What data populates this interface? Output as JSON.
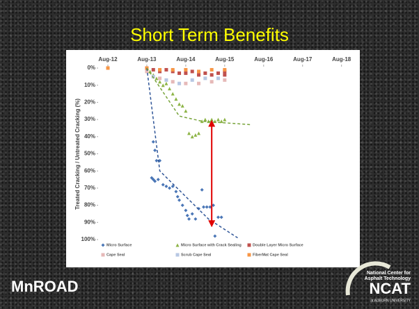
{
  "chart_data": {
    "type": "scatter",
    "title": "Short Term Benefits",
    "y_label": "Treated Cracking / Untreated Cracking (%)",
    "xlim": [
      -3,
      74
    ],
    "xticks": [
      {
        "value": 0,
        "label": "Aug-12"
      },
      {
        "value": 12,
        "label": "Aug-13"
      },
      {
        "value": 24,
        "label": "Aug-14"
      },
      {
        "value": 36,
        "label": "Aug-15"
      },
      {
        "value": 48,
        "label": "Aug-16"
      },
      {
        "value": 60,
        "label": "Aug-17"
      },
      {
        "value": 72,
        "label": "Aug-18"
      }
    ],
    "ylim": [
      0,
      100
    ],
    "y_inverted": true,
    "yticks": [
      {
        "value": 0,
        "label": "0%"
      },
      {
        "value": 10,
        "label": "10%"
      },
      {
        "value": 20,
        "label": "20%"
      },
      {
        "value": 30,
        "label": "30%"
      },
      {
        "value": 40,
        "label": "40%"
      },
      {
        "value": 50,
        "label": "50%"
      },
      {
        "value": 60,
        "label": "60%"
      },
      {
        "value": 70,
        "label": "70%"
      },
      {
        "value": 80,
        "label": "80%"
      },
      {
        "value": 90,
        "label": "90%"
      },
      {
        "value": 100,
        "label": "100%"
      }
    ],
    "legend": "bottom",
    "series": [
      {
        "name": "Micro Surface",
        "color": "#4a76b6",
        "marker": "diamond",
        "x": [
          12,
          14,
          14.5,
          15,
          16,
          13.5,
          14,
          14.5,
          15.5,
          17,
          18,
          19,
          20,
          21,
          21.5,
          22,
          23,
          24,
          24.5,
          25,
          26,
          27,
          28,
          29,
          29.5,
          30.5,
          31.5,
          32.5,
          33,
          34,
          35
        ],
        "values": [
          0,
          43,
          48,
          54,
          54,
          64,
          65,
          66,
          65,
          68,
          69,
          70,
          69,
          72,
          75,
          77,
          80,
          83,
          86,
          88,
          85,
          88,
          82,
          71,
          81,
          81,
          81,
          80,
          98,
          87,
          87
        ]
      },
      {
        "name": "Micro Surface with Crack Sealing",
        "color": "#8db446",
        "marker": "triangle",
        "x": [
          12,
          13,
          14,
          15,
          16,
          17,
          18,
          19,
          20,
          21,
          22,
          23,
          24,
          25,
          26,
          27,
          28,
          29,
          30,
          31,
          32,
          33,
          34,
          35,
          36
        ],
        "values": [
          0,
          2,
          4,
          6,
          8,
          10,
          9,
          12,
          15,
          18,
          21,
          22,
          25,
          38,
          40,
          39,
          38,
          31,
          30,
          31,
          30,
          31,
          30,
          31,
          30
        ]
      },
      {
        "name": "Double Layer Micro Surface",
        "color": "#c0504d",
        "marker": "square",
        "x": [
          12,
          14,
          16,
          18,
          20,
          22,
          24,
          26,
          28,
          30,
          32,
          34,
          36,
          36
        ],
        "values": [
          0,
          1,
          2,
          1,
          2,
          3,
          3,
          2,
          4,
          3,
          4,
          3,
          2,
          4
        ]
      },
      {
        "name": "Cape Seal",
        "color": "#e6b9b8",
        "marker": "square",
        "x": [
          12,
          16,
          20,
          24,
          28,
          32,
          36
        ],
        "values": [
          2,
          6,
          8,
          9,
          9,
          8,
          7
        ]
      },
      {
        "name": "Scrub Cape Seal",
        "color": "#b7c7e3",
        "marker": "square",
        "x": [
          14,
          18,
          22,
          26,
          30,
          34
        ],
        "values": [
          5,
          7,
          9,
          7,
          6,
          6
        ]
      },
      {
        "name": "FiberMat Cape Seal",
        "color": "#f79646",
        "marker": "square",
        "x": [
          0,
          12,
          16,
          20,
          24,
          28,
          32,
          36
        ],
        "values": [
          0,
          0,
          1,
          1,
          1,
          2,
          1,
          1
        ]
      }
    ],
    "trendlines": [
      {
        "color": "#2f5597",
        "x": [
          12,
          16,
          31,
          40
        ],
        "values": [
          0,
          60,
          88,
          99
        ]
      },
      {
        "color": "#77a33a",
        "x": [
          12,
          22,
          29,
          44
        ],
        "values": [
          0,
          28,
          31,
          33
        ]
      }
    ],
    "arrow": {
      "color": "#e00000",
      "x": 32,
      "values": [
        31,
        92
      ]
    }
  },
  "logos": {
    "left": "MnROAD",
    "right": [
      "National Center for",
      "Asphalt Technology",
      "NCAT",
      "at AUBURN UNIVERSITY"
    ]
  }
}
